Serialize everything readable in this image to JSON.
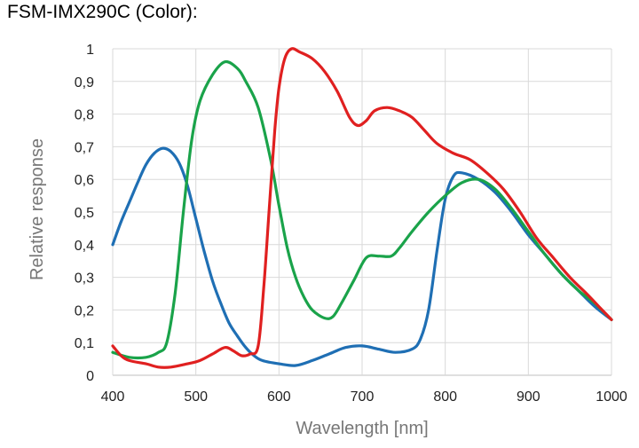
{
  "title": "FSM-IMX290C (Color):",
  "chart_data": {
    "type": "line",
    "xlabel": "Wavelength [nm]",
    "ylabel": "Relative response",
    "xlim": [
      400,
      1000
    ],
    "ylim": [
      0,
      1
    ],
    "x_ticks": [
      "400",
      "500",
      "600",
      "700",
      "800",
      "900",
      "1000"
    ],
    "y_ticks": [
      "0",
      "0,1",
      "0,2",
      "0,3",
      "0,4",
      "0,5",
      "0,6",
      "0,7",
      "0,8",
      "0,9",
      "1"
    ],
    "grid": true,
    "series": [
      {
        "color": "#1f6fb4",
        "points": [
          [
            400,
            0.4
          ],
          [
            410,
            0.47
          ],
          [
            420,
            0.53
          ],
          [
            430,
            0.59
          ],
          [
            440,
            0.645
          ],
          [
            450,
            0.68
          ],
          [
            460,
            0.695
          ],
          [
            470,
            0.685
          ],
          [
            480,
            0.65
          ],
          [
            490,
            0.58
          ],
          [
            500,
            0.48
          ],
          [
            510,
            0.38
          ],
          [
            520,
            0.29
          ],
          [
            530,
            0.22
          ],
          [
            540,
            0.16
          ],
          [
            550,
            0.12
          ],
          [
            560,
            0.085
          ],
          [
            570,
            0.06
          ],
          [
            580,
            0.045
          ],
          [
            600,
            0.035
          ],
          [
            620,
            0.03
          ],
          [
            640,
            0.045
          ],
          [
            660,
            0.065
          ],
          [
            680,
            0.085
          ],
          [
            700,
            0.09
          ],
          [
            720,
            0.08
          ],
          [
            740,
            0.07
          ],
          [
            760,
            0.08
          ],
          [
            770,
            0.11
          ],
          [
            780,
            0.2
          ],
          [
            790,
            0.38
          ],
          [
            800,
            0.54
          ],
          [
            810,
            0.61
          ],
          [
            820,
            0.62
          ],
          [
            840,
            0.6
          ],
          [
            860,
            0.56
          ],
          [
            880,
            0.5
          ],
          [
            900,
            0.43
          ],
          [
            920,
            0.37
          ],
          [
            940,
            0.31
          ],
          [
            960,
            0.26
          ],
          [
            980,
            0.21
          ],
          [
            1000,
            0.17
          ]
        ]
      },
      {
        "color": "#1aa34a",
        "points": [
          [
            400,
            0.07
          ],
          [
            420,
            0.055
          ],
          [
            440,
            0.055
          ],
          [
            455,
            0.07
          ],
          [
            465,
            0.1
          ],
          [
            475,
            0.25
          ],
          [
            485,
            0.5
          ],
          [
            495,
            0.72
          ],
          [
            505,
            0.84
          ],
          [
            520,
            0.92
          ],
          [
            535,
            0.96
          ],
          [
            550,
            0.94
          ],
          [
            560,
            0.9
          ],
          [
            575,
            0.82
          ],
          [
            590,
            0.66
          ],
          [
            600,
            0.52
          ],
          [
            610,
            0.39
          ],
          [
            620,
            0.3
          ],
          [
            630,
            0.24
          ],
          [
            640,
            0.2
          ],
          [
            655,
            0.175
          ],
          [
            665,
            0.18
          ],
          [
            675,
            0.22
          ],
          [
            690,
            0.29
          ],
          [
            705,
            0.36
          ],
          [
            720,
            0.365
          ],
          [
            735,
            0.365
          ],
          [
            745,
            0.39
          ],
          [
            760,
            0.44
          ],
          [
            780,
            0.5
          ],
          [
            800,
            0.55
          ],
          [
            820,
            0.59
          ],
          [
            840,
            0.6
          ],
          [
            860,
            0.57
          ],
          [
            880,
            0.51
          ],
          [
            900,
            0.44
          ],
          [
            920,
            0.37
          ],
          [
            940,
            0.31
          ],
          [
            960,
            0.26
          ],
          [
            980,
            0.22
          ],
          [
            1000,
            0.17
          ]
        ]
      },
      {
        "color": "#e02020",
        "points": [
          [
            400,
            0.09
          ],
          [
            410,
            0.06
          ],
          [
            420,
            0.045
          ],
          [
            440,
            0.035
          ],
          [
            455,
            0.025
          ],
          [
            470,
            0.025
          ],
          [
            490,
            0.035
          ],
          [
            505,
            0.045
          ],
          [
            520,
            0.065
          ],
          [
            535,
            0.085
          ],
          [
            545,
            0.075
          ],
          [
            555,
            0.06
          ],
          [
            565,
            0.065
          ],
          [
            575,
            0.09
          ],
          [
            582,
            0.28
          ],
          [
            588,
            0.5
          ],
          [
            595,
            0.75
          ],
          [
            600,
            0.88
          ],
          [
            607,
            0.97
          ],
          [
            615,
            1.0
          ],
          [
            625,
            0.99
          ],
          [
            640,
            0.97
          ],
          [
            655,
            0.93
          ],
          [
            670,
            0.87
          ],
          [
            685,
            0.79
          ],
          [
            695,
            0.765
          ],
          [
            705,
            0.78
          ],
          [
            715,
            0.81
          ],
          [
            730,
            0.82
          ],
          [
            745,
            0.81
          ],
          [
            760,
            0.79
          ],
          [
            775,
            0.75
          ],
          [
            790,
            0.71
          ],
          [
            810,
            0.68
          ],
          [
            830,
            0.66
          ],
          [
            850,
            0.62
          ],
          [
            870,
            0.57
          ],
          [
            890,
            0.5
          ],
          [
            910,
            0.42
          ],
          [
            930,
            0.36
          ],
          [
            950,
            0.3
          ],
          [
            970,
            0.25
          ],
          [
            985,
            0.21
          ],
          [
            1000,
            0.17
          ]
        ]
      }
    ]
  }
}
